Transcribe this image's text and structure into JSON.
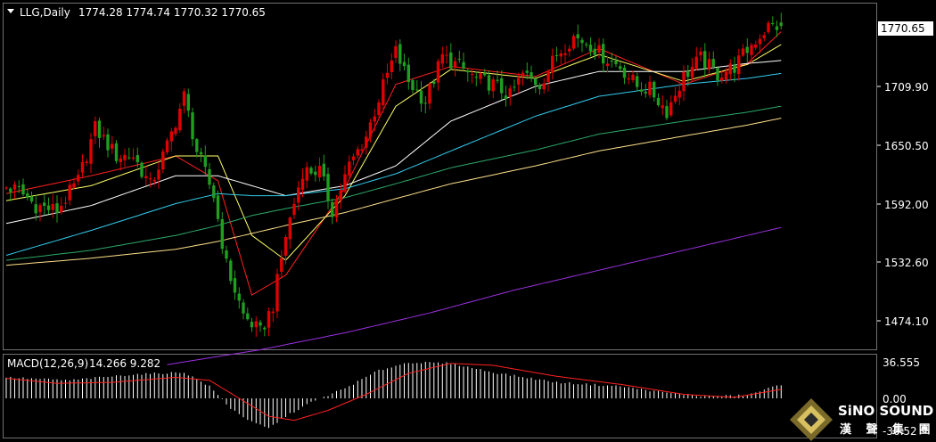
{
  "header": {
    "symbol_label": "LLG,Daily",
    "ohlc_text": "1774.28 1774.74 1770.32 1770.65"
  },
  "macd_header": {
    "label": "MACD(12,26,9)",
    "values_text": "14.266 9.282"
  },
  "price_axis": {
    "ticks": [
      "1770.65",
      "1709.90",
      "1650.50",
      "1592.00",
      "1532.60",
      "1474.10"
    ],
    "current_price_label": "1770.65"
  },
  "macd_axis": {
    "ticks": [
      "36.555",
      "0.00",
      "-30.52"
    ]
  },
  "logo": {
    "name": "SiNO SOUND",
    "sub": "漢 聲 集 團"
  },
  "colors": {
    "background": "#000000",
    "bull": "#e00000",
    "bear": "#1f9e1f",
    "ma5": "#ff2020",
    "ma10": "#ffff66",
    "ma20": "#ffffff",
    "ma30": "#33ccee",
    "ma60": "#2ea86a",
    "ma120": "#ffe08a",
    "ma250": "#9b30e0",
    "macd_hist": "#ffffff",
    "macd_signal": "#ff2020",
    "grid": "#707070"
  },
  "chart_data": {
    "type": "candlestick",
    "price_range": [
      1430,
      1790
    ],
    "last_price": 1770.65,
    "key_points": [
      [
        0,
        1610
      ],
      [
        4,
        1605
      ],
      [
        8,
        1590
      ],
      [
        13,
        1585
      ],
      [
        18,
        1615
      ],
      [
        22,
        1668
      ],
      [
        27,
        1640
      ],
      [
        31,
        1640
      ],
      [
        35,
        1610
      ],
      [
        39,
        1650
      ],
      [
        43,
        1700
      ],
      [
        46,
        1645
      ],
      [
        50,
        1600
      ],
      [
        53,
        1530
      ],
      [
        57,
        1480
      ],
      [
        61,
        1462
      ],
      [
        64,
        1490
      ],
      [
        67,
        1560
      ],
      [
        71,
        1625
      ],
      [
        75,
        1625
      ],
      [
        78,
        1585
      ],
      [
        82,
        1630
      ],
      [
        86,
        1660
      ],
      [
        90,
        1710
      ],
      [
        93,
        1745
      ],
      [
        96,
        1715
      ],
      [
        100,
        1695
      ],
      [
        104,
        1740
      ],
      [
        108,
        1730
      ],
      [
        112,
        1717
      ],
      [
        116,
        1712
      ],
      [
        120,
        1700
      ],
      [
        123,
        1722
      ],
      [
        127,
        1712
      ],
      [
        131,
        1742
      ],
      [
        135,
        1760
      ],
      [
        139,
        1752
      ],
      [
        142,
        1740
      ],
      [
        146,
        1730
      ],
      [
        150,
        1710
      ],
      [
        153,
        1707
      ],
      [
        157,
        1685
      ],
      [
        161,
        1720
      ],
      [
        165,
        1738
      ],
      [
        169,
        1722
      ],
      [
        173,
        1730
      ],
      [
        177,
        1752
      ],
      [
        181,
        1770
      ],
      [
        183,
        1770.65
      ]
    ],
    "moving_averages": [
      {
        "period": 5,
        "points": [
          [
            0,
            1602
          ],
          [
            20,
            1620
          ],
          [
            40,
            1640
          ],
          [
            50,
            1615
          ],
          [
            58,
            1500
          ],
          [
            66,
            1520
          ],
          [
            80,
            1608
          ],
          [
            92,
            1712
          ],
          [
            105,
            1730
          ],
          [
            125,
            1720
          ],
          [
            140,
            1748
          ],
          [
            160,
            1712
          ],
          [
            175,
            1733
          ],
          [
            183,
            1765
          ]
        ]
      },
      {
        "period": 10,
        "points": [
          [
            0,
            1595
          ],
          [
            20,
            1610
          ],
          [
            40,
            1640
          ],
          [
            50,
            1640
          ],
          [
            58,
            1560
          ],
          [
            66,
            1535
          ],
          [
            80,
            1600
          ],
          [
            92,
            1690
          ],
          [
            105,
            1727
          ],
          [
            125,
            1718
          ],
          [
            140,
            1742
          ],
          [
            160,
            1715
          ],
          [
            175,
            1732
          ],
          [
            183,
            1752
          ]
        ]
      },
      {
        "period": 20,
        "points": [
          [
            0,
            1572
          ],
          [
            20,
            1590
          ],
          [
            40,
            1620
          ],
          [
            50,
            1620
          ],
          [
            58,
            1610
          ],
          [
            66,
            1600
          ],
          [
            80,
            1610
          ],
          [
            92,
            1630
          ],
          [
            105,
            1675
          ],
          [
            125,
            1710
          ],
          [
            140,
            1725
          ],
          [
            160,
            1725
          ],
          [
            175,
            1733
          ],
          [
            183,
            1736
          ]
        ]
      },
      {
        "period": 30,
        "points": [
          [
            0,
            1540
          ],
          [
            20,
            1565
          ],
          [
            40,
            1592
          ],
          [
            50,
            1602
          ],
          [
            58,
            1600
          ],
          [
            66,
            1600
          ],
          [
            80,
            1607
          ],
          [
            92,
            1622
          ],
          [
            105,
            1645
          ],
          [
            125,
            1680
          ],
          [
            140,
            1700
          ],
          [
            160,
            1712
          ],
          [
            175,
            1718
          ],
          [
            183,
            1723
          ]
        ]
      },
      {
        "period": 60,
        "points": [
          [
            0,
            1535
          ],
          [
            20,
            1545
          ],
          [
            40,
            1560
          ],
          [
            50,
            1570
          ],
          [
            58,
            1580
          ],
          [
            66,
            1587
          ],
          [
            80,
            1598
          ],
          [
            92,
            1612
          ],
          [
            105,
            1628
          ],
          [
            125,
            1646
          ],
          [
            140,
            1662
          ],
          [
            160,
            1675
          ],
          [
            175,
            1684
          ],
          [
            183,
            1690
          ]
        ]
      },
      {
        "period": 120,
        "points": [
          [
            0,
            1530
          ],
          [
            20,
            1537
          ],
          [
            40,
            1546
          ],
          [
            50,
            1554
          ],
          [
            58,
            1562
          ],
          [
            66,
            1570
          ],
          [
            80,
            1583
          ],
          [
            92,
            1597
          ],
          [
            105,
            1612
          ],
          [
            125,
            1630
          ],
          [
            140,
            1645
          ],
          [
            160,
            1660
          ],
          [
            175,
            1671
          ],
          [
            183,
            1678
          ]
        ]
      },
      {
        "period": 250,
        "points": [
          [
            38,
            1430
          ],
          [
            60,
            1445
          ],
          [
            80,
            1462
          ],
          [
            100,
            1482
          ],
          [
            120,
            1505
          ],
          [
            140,
            1525
          ],
          [
            160,
            1545
          ],
          [
            183,
            1568
          ]
        ]
      }
    ],
    "macd": {
      "fast": 12,
      "slow": 26,
      "signal": 9,
      "macd_value": 14.266,
      "signal_value": 9.282,
      "range": [
        -30.52,
        36.555
      ],
      "hist_points": [
        [
          0,
          21
        ],
        [
          15,
          18
        ],
        [
          30,
          24
        ],
        [
          42,
          26
        ],
        [
          48,
          12
        ],
        [
          53,
          -10
        ],
        [
          58,
          -24
        ],
        [
          62,
          -30
        ],
        [
          66,
          -18
        ],
        [
          72,
          -4
        ],
        [
          80,
          10
        ],
        [
          88,
          28
        ],
        [
          95,
          36
        ],
        [
          105,
          35
        ],
        [
          115,
          26
        ],
        [
          130,
          16
        ],
        [
          145,
          12
        ],
        [
          155,
          6
        ],
        [
          165,
          2
        ],
        [
          175,
          3
        ],
        [
          183,
          14
        ]
      ],
      "signal_points": [
        [
          0,
          20
        ],
        [
          12,
          15
        ],
        [
          25,
          16
        ],
        [
          40,
          21
        ],
        [
          48,
          18
        ],
        [
          55,
          0
        ],
        [
          62,
          -18
        ],
        [
          68,
          -22
        ],
        [
          76,
          -12
        ],
        [
          85,
          4
        ],
        [
          95,
          25
        ],
        [
          105,
          35
        ],
        [
          115,
          33
        ],
        [
          130,
          22
        ],
        [
          145,
          14
        ],
        [
          160,
          4
        ],
        [
          172,
          1
        ],
        [
          183,
          9
        ]
      ]
    }
  }
}
